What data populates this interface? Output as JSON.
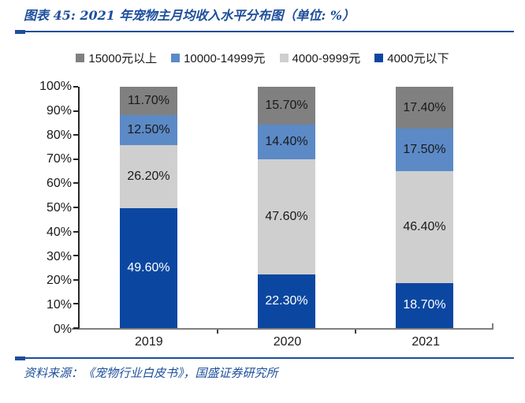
{
  "header": {
    "title": "图表 45: 2021 年宠物主月均收入水平分布图（单位: %）"
  },
  "chart_data": {
    "type": "bar",
    "stacked": true,
    "percent_stacked": true,
    "title": "2021 年宠物主月均收入水平分布图",
    "unit": "%",
    "categories": [
      "2019",
      "2020",
      "2021"
    ],
    "series": [
      {
        "name": "4000元以下",
        "color": "#0B47A1",
        "label_color": "#FFFFFF",
        "values": [
          49.6,
          22.3,
          18.7
        ]
      },
      {
        "name": "4000-9999元",
        "color": "#CFCFCF",
        "label_color": "#1A1A1A",
        "values": [
          26.2,
          47.6,
          46.4
        ]
      },
      {
        "name": "10000-14999元",
        "color": "#5B8AC7",
        "label_color": "#1A1A1A",
        "values": [
          12.5,
          14.4,
          17.5
        ]
      },
      {
        "name": "15000元以上",
        "color": "#808080",
        "label_color": "#1A1A1A",
        "values": [
          11.7,
          15.7,
          17.4
        ]
      }
    ],
    "legend": {
      "position": "top",
      "order": [
        "15000元以上",
        "10000-14999元",
        "4000-9999元",
        "4000元以下"
      ]
    },
    "y_axis": {
      "min": 0,
      "max": 100,
      "step": 10,
      "tick_labels": [
        "0%",
        "10%",
        "20%",
        "30%",
        "40%",
        "50%",
        "60%",
        "70%",
        "80%",
        "90%",
        "100%"
      ]
    },
    "value_label_decimals": 2,
    "value_label_suffix": "%",
    "grid": false
  },
  "footer": {
    "source": "资料来源：《宠物行业白皮书》，国盛证券研究所"
  },
  "theme": {
    "accent_blue": "#1D4E9B",
    "text_color": "#1A1A1A",
    "axis_dark": "#262626",
    "axis_gray": "#7F7F7F"
  }
}
